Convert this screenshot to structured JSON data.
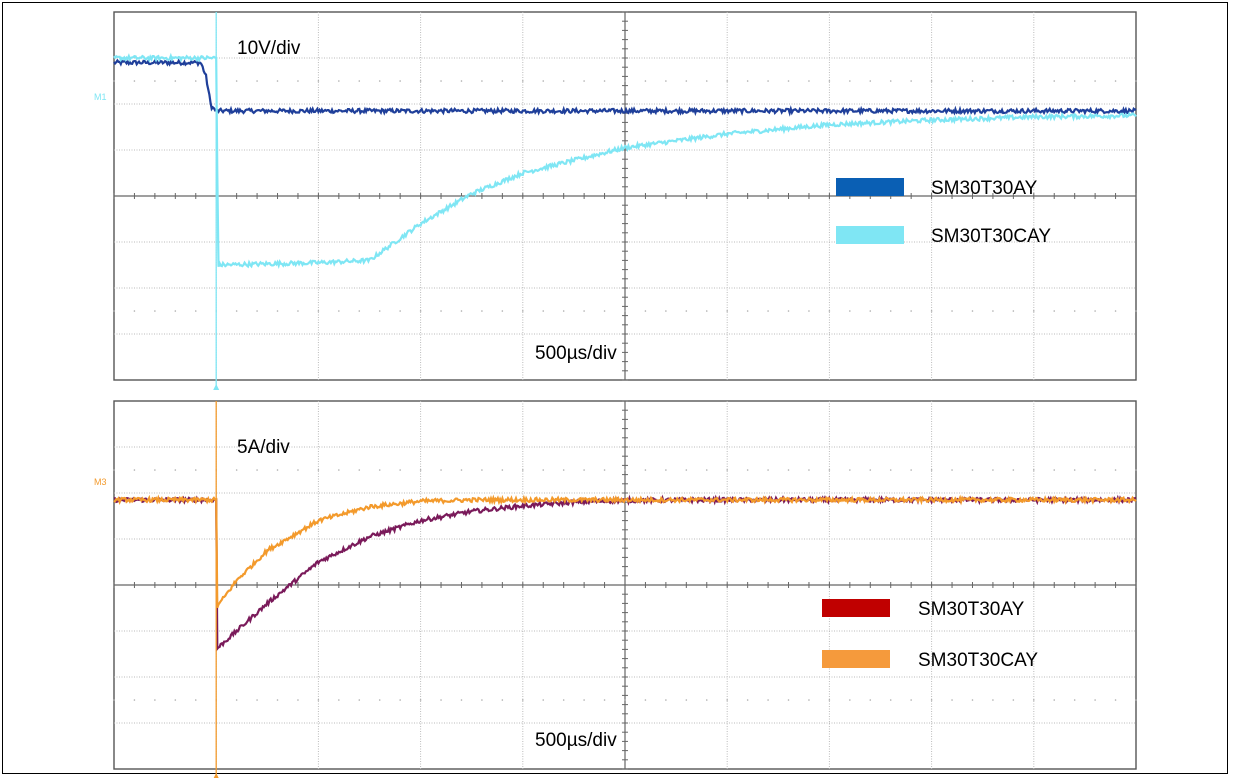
{
  "chart_data": [
    {
      "type": "line",
      "scale_label": "10V/div",
      "time_label": "500µs/div",
      "marker_label": "M1",
      "grid": true,
      "x_divisions": 10,
      "y_divisions": 8,
      "x_unit": "div",
      "y_unit": "div",
      "legend_position": "right",
      "series": [
        {
          "name": "SM30T30AY",
          "color": "#1f3f9a",
          "legend_color": "#0a5fb4",
          "x": [
            0,
            0.85,
            0.9,
            0.95,
            1.0,
            2.0,
            4.0,
            6.0,
            8.0,
            10.0
          ],
          "y": [
            6.9,
            6.9,
            6.6,
            5.95,
            5.85,
            5.85,
            5.85,
            5.85,
            5.85,
            5.85
          ]
        },
        {
          "name": "SM30T30CAY",
          "color": "#7fe6f4",
          "legend_color": "#7fe6f4",
          "x": [
            0,
            0.9,
            1.0,
            1.02,
            2.0,
            2.5,
            3.0,
            3.5,
            4.0,
            5.0,
            6.0,
            7.0,
            8.0,
            9.0,
            10.0
          ],
          "y": [
            7.0,
            7.0,
            7.0,
            2.5,
            2.55,
            2.6,
            3.4,
            4.05,
            4.5,
            5.05,
            5.35,
            5.55,
            5.65,
            5.72,
            5.75
          ]
        }
      ]
    },
    {
      "type": "line",
      "scale_label": "5A/div",
      "time_label": "500µs/div",
      "marker_label": "M3",
      "grid": true,
      "x_divisions": 10,
      "y_divisions": 8,
      "x_unit": "div",
      "y_unit": "div",
      "legend_position": "bottom-right",
      "series": [
        {
          "name": "SM30T30AY",
          "color": "#7a1a5a",
          "legend_color": "#c00000",
          "x": [
            0,
            1.0,
            1.0,
            1.2,
            1.5,
            2.0,
            2.5,
            3.0,
            3.5,
            4.0,
            4.5,
            5.0,
            6.0,
            7.0,
            8.0,
            9.0,
            10.0
          ],
          "y": [
            5.85,
            5.85,
            2.6,
            3.0,
            3.6,
            4.5,
            5.05,
            5.4,
            5.6,
            5.72,
            5.8,
            5.84,
            5.85,
            5.85,
            5.85,
            5.85,
            5.85
          ]
        },
        {
          "name": "SM30T30CAY",
          "color": "#f39a2c",
          "legend_color": "#f59a3c",
          "x": [
            0,
            1.0,
            1.0,
            1.2,
            1.5,
            2.0,
            2.5,
            3.0,
            3.5,
            4.0,
            5.0,
            6.0,
            7.0,
            8.0,
            9.0,
            10.0
          ],
          "y": [
            5.85,
            5.85,
            3.5,
            4.1,
            4.75,
            5.4,
            5.7,
            5.82,
            5.85,
            5.85,
            5.85,
            5.85,
            5.85,
            5.85,
            5.85,
            5.85
          ]
        }
      ]
    }
  ]
}
